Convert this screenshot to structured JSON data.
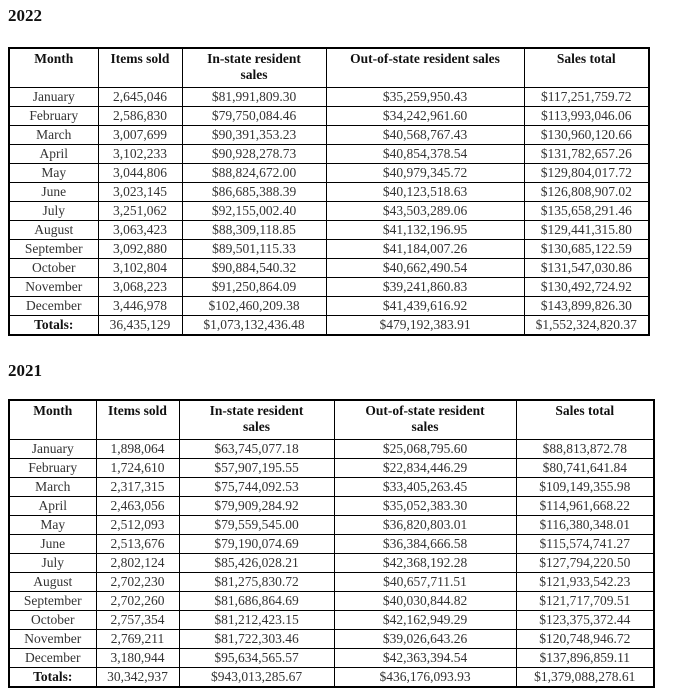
{
  "sections": [
    {
      "year": "2022",
      "table": {
        "headers": [
          "Month",
          "Items sold",
          "In-state resident\nsales",
          "Out-of-state resident sales",
          "Sales total"
        ],
        "rows": [
          [
            "January",
            "2,645,046",
            "$81,991,809.30",
            "$35,259,950.43",
            "$117,251,759.72"
          ],
          [
            "February",
            "2,586,830",
            "$79,750,084.46",
            "$34,242,961.60",
            "$113,993,046.06"
          ],
          [
            "March",
            "3,007,699",
            "$90,391,353.23",
            "$40,568,767.43",
            "$130,960,120.66"
          ],
          [
            "April",
            "3,102,233",
            "$90,928,278.73",
            "$40,854,378.54",
            "$131,782,657.26"
          ],
          [
            "May",
            "3,044,806",
            "$88,824,672.00",
            "$40,979,345.72",
            "$129,804,017.72"
          ],
          [
            "June",
            "3,023,145",
            "$86,685,388.39",
            "$40,123,518.63",
            "$126,808,907.02"
          ],
          [
            "July",
            "3,251,062",
            "$92,155,002.40",
            "$43,503,289.06",
            "$135,658,291.46"
          ],
          [
            "August",
            "3,063,423",
            "$88,309,118.85",
            "$41,132,196.95",
            "$129,441,315.80"
          ],
          [
            "September",
            "3,092,880",
            "$89,501,115.33",
            "$41,184,007.26",
            "$130,685,122.59"
          ],
          [
            "October",
            "3,102,804",
            "$90,884,540.32",
            "$40,662,490.54",
            "$131,547,030.86"
          ],
          [
            "November",
            "3,068,223",
            "$91,250,864.09",
            "$39,241,860.83",
            "$130,492,724.92"
          ],
          [
            "December",
            "3,446,978",
            "$102,460,209.38",
            "$41,439,616.92",
            "$143,899,826.30"
          ]
        ],
        "totals": [
          "Totals:",
          "36,435,129",
          "$1,073,132,436.48",
          "$479,192,383.91",
          "$1,552,324,820.37"
        ]
      }
    },
    {
      "year": "2021",
      "table": {
        "headers": [
          "Month",
          "Items sold",
          "In-state resident\nsales",
          "Out-of-state resident\nsales",
          "Sales total"
        ],
        "rows": [
          [
            "January",
            "1,898,064",
            "$63,745,077.18",
            "$25,068,795.60",
            "$88,813,872.78"
          ],
          [
            "February",
            "1,724,610",
            "$57,907,195.55",
            "$22,834,446.29",
            "$80,741,641.84"
          ],
          [
            "March",
            "2,317,315",
            "$75,744,092.53",
            "$33,405,263.45",
            "$109,149,355.98"
          ],
          [
            "April",
            "2,463,056",
            "$79,909,284.92",
            "$35,052,383.30",
            "$114,961,668.22"
          ],
          [
            "May",
            "2,512,093",
            "$79,559,545.00",
            "$36,820,803.01",
            "$116,380,348.01"
          ],
          [
            "June",
            "2,513,676",
            "$79,190,074.69",
            "$36,384,666.58",
            "$115,574,741.27"
          ],
          [
            "July",
            "2,802,124",
            "$85,426,028.21",
            "$42,368,192.28",
            "$127,794,220.50"
          ],
          [
            "August",
            "2,702,230",
            "$81,275,830.72",
            "$40,657,711.51",
            "$121,933,542.23"
          ],
          [
            "September",
            "2,702,260",
            "$81,686,864.69",
            "$40,030,844.82",
            "$121,717,709.51"
          ],
          [
            "October",
            "2,757,354",
            "$81,212,423.15",
            "$42,162,949.29",
            "$123,375,372.44"
          ],
          [
            "November",
            "2,769,211",
            "$81,722,303.46",
            "$39,026,643.26",
            "$120,748,946.72"
          ],
          [
            "December",
            "3,180,944",
            "$95,634,565.57",
            "$42,363,394.54",
            "$137,896,859.11"
          ]
        ],
        "totals": [
          "Totals:",
          "30,342,937",
          "$943,013,285.67",
          "$436,176,093.93",
          "$1,379,088,278.61"
        ]
      }
    }
  ]
}
